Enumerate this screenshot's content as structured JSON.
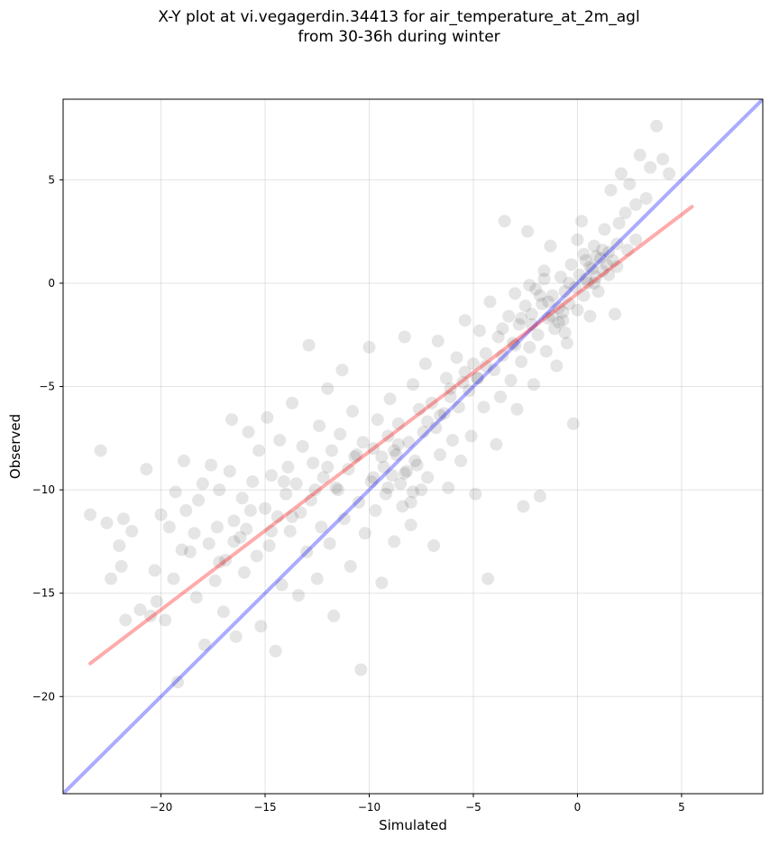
{
  "chart_data": {
    "type": "scatter",
    "title": "X-Y plot at vi.vegagerdin.34413 for air_temperature_at_2m_agl\nfrom 30-36h during winter",
    "xlabel": "Simulated",
    "ylabel": "Observed",
    "xlim": [
      -24.7,
      8.9
    ],
    "ylim": [
      -24.7,
      8.9
    ],
    "xticks": [
      -20,
      -15,
      -10,
      -5,
      0,
      5
    ],
    "yticks": [
      -20,
      -15,
      -10,
      -5,
      0,
      5
    ],
    "xtick_labels": [
      "−20",
      "−15",
      "−10",
      "−5",
      "0",
      "5"
    ],
    "ytick_labels": [
      "−20",
      "−15",
      "−10",
      "−5",
      "0",
      "5"
    ],
    "grid": true,
    "legend": "none",
    "point_color": "#000000",
    "identity_line": {
      "color": "#0000ff",
      "from": [
        -24.7,
        -24.7
      ],
      "to": [
        8.9,
        8.9
      ]
    },
    "regression_line": {
      "color": "#ff0000",
      "from": [
        -23.4,
        -18.4
      ],
      "to": [
        5.5,
        3.7
      ]
    },
    "points": [
      [
        -23.4,
        -11.2
      ],
      [
        -22.9,
        -8.1
      ],
      [
        -22.6,
        -11.6
      ],
      [
        -22.4,
        -14.3
      ],
      [
        -22.0,
        -12.7
      ],
      [
        -21.9,
        -13.7
      ],
      [
        -21.8,
        -11.4
      ],
      [
        -21.7,
        -16.3
      ],
      [
        -21.4,
        -12.0
      ],
      [
        -21.0,
        -15.8
      ],
      [
        -20.7,
        -9.0
      ],
      [
        -20.5,
        -16.1
      ],
      [
        -20.3,
        -13.9
      ],
      [
        -20.2,
        -15.4
      ],
      [
        -20.0,
        -11.2
      ],
      [
        -19.8,
        -16.3
      ],
      [
        -19.6,
        -11.8
      ],
      [
        -19.4,
        -14.3
      ],
      [
        -19.3,
        -10.1
      ],
      [
        -19.2,
        -19.3
      ],
      [
        -19.0,
        -12.9
      ],
      [
        -18.9,
        -8.6
      ],
      [
        -18.8,
        -11.0
      ],
      [
        -18.6,
        -13.0
      ],
      [
        -18.4,
        -12.1
      ],
      [
        -18.3,
        -15.2
      ],
      [
        -18.2,
        -10.5
      ],
      [
        -18.0,
        -9.7
      ],
      [
        -17.9,
        -17.5
      ],
      [
        -17.7,
        -12.6
      ],
      [
        -17.6,
        -8.8
      ],
      [
        -17.4,
        -14.4
      ],
      [
        -17.3,
        -11.8
      ],
      [
        -17.2,
        -10.0
      ],
      [
        -17.0,
        -15.9
      ],
      [
        -16.9,
        -13.4
      ],
      [
        -16.7,
        -9.1
      ],
      [
        -16.6,
        -6.6
      ],
      [
        -16.5,
        -11.5
      ],
      [
        -16.4,
        -17.1
      ],
      [
        -16.2,
        -12.3
      ],
      [
        -16.1,
        -10.4
      ],
      [
        -16.0,
        -14.0
      ],
      [
        -15.8,
        -7.2
      ],
      [
        -15.7,
        -11.0
      ],
      [
        -15.6,
        -9.6
      ],
      [
        -15.4,
        -13.2
      ],
      [
        -15.3,
        -8.1
      ],
      [
        -15.2,
        -16.6
      ],
      [
        -15.0,
        -10.9
      ],
      [
        -14.9,
        -6.5
      ],
      [
        -14.8,
        -12.7
      ],
      [
        -14.7,
        -9.3
      ],
      [
        -14.5,
        -17.8
      ],
      [
        -14.4,
        -11.3
      ],
      [
        -14.3,
        -7.6
      ],
      [
        -14.2,
        -14.6
      ],
      [
        -14.0,
        -10.2
      ],
      [
        -13.9,
        -8.9
      ],
      [
        -13.8,
        -12.0
      ],
      [
        -13.7,
        -5.8
      ],
      [
        -13.5,
        -9.7
      ],
      [
        -13.4,
        -15.1
      ],
      [
        -13.3,
        -11.1
      ],
      [
        -13.2,
        -7.9
      ],
      [
        -13.0,
        -13.0
      ],
      [
        -12.9,
        -3.0
      ],
      [
        -12.8,
        -10.5
      ],
      [
        -12.7,
        -8.7
      ],
      [
        -12.5,
        -14.3
      ],
      [
        -12.4,
        -6.9
      ],
      [
        -12.3,
        -11.8
      ],
      [
        -12.2,
        -9.4
      ],
      [
        -12.0,
        -5.1
      ],
      [
        -11.9,
        -12.6
      ],
      [
        -11.8,
        -8.1
      ],
      [
        -11.7,
        -16.1
      ],
      [
        -11.5,
        -10.0
      ],
      [
        -11.4,
        -7.3
      ],
      [
        -11.3,
        -4.2
      ],
      [
        -11.2,
        -11.4
      ],
      [
        -11.0,
        -9.0
      ],
      [
        -10.9,
        -13.7
      ],
      [
        -10.8,
        -6.2
      ],
      [
        -10.7,
        -8.4
      ],
      [
        -10.5,
        -10.6
      ],
      [
        -10.4,
        -18.7
      ],
      [
        -10.3,
        -7.7
      ],
      [
        -10.2,
        -12.1
      ],
      [
        -10.0,
        -3.1
      ],
      [
        -9.9,
        -9.6
      ],
      [
        -9.8,
        -8.0
      ],
      [
        -9.7,
        -11.0
      ],
      [
        -9.6,
        -6.6
      ],
      [
        -9.4,
        -14.5
      ],
      [
        -9.3,
        -8.9
      ],
      [
        -9.2,
        -10.2
      ],
      [
        -9.1,
        -7.4
      ],
      [
        -9.0,
        -5.6
      ],
      [
        -8.9,
        -9.3
      ],
      [
        -8.8,
        -12.5
      ],
      [
        -8.7,
        -8.3
      ],
      [
        -8.6,
        -6.8
      ],
      [
        -8.4,
        -10.8
      ],
      [
        -8.3,
        -2.6
      ],
      [
        -8.2,
        -9.1
      ],
      [
        -8.1,
        -7.7
      ],
      [
        -8.0,
        -11.7
      ],
      [
        -7.9,
        -4.9
      ],
      [
        -7.8,
        -8.6
      ],
      [
        -7.6,
        -6.1
      ],
      [
        -7.5,
        -10.0
      ],
      [
        -7.4,
        -7.2
      ],
      [
        -7.3,
        -3.9
      ],
      [
        -7.2,
        -9.4
      ],
      [
        -7.0,
        -5.8
      ],
      [
        -6.9,
        -12.7
      ],
      [
        -6.8,
        -7.0
      ],
      [
        -6.7,
        -2.8
      ],
      [
        -6.6,
        -8.3
      ],
      [
        -6.4,
        -6.3
      ],
      [
        -6.3,
        -4.6
      ],
      [
        -6.2,
        -9.9
      ],
      [
        -6.1,
        -5.5
      ],
      [
        -6.0,
        -7.6
      ],
      [
        -5.8,
        -3.6
      ],
      [
        -5.7,
        -6.0
      ],
      [
        -5.6,
        -8.6
      ],
      [
        -5.5,
        -4.8
      ],
      [
        -5.4,
        -1.8
      ],
      [
        -5.2,
        -5.2
      ],
      [
        -5.1,
        -7.4
      ],
      [
        -5.0,
        -3.9
      ],
      [
        -4.9,
        -10.2
      ],
      [
        -4.8,
        -4.6
      ],
      [
        -4.7,
        -2.3
      ],
      [
        -4.5,
        -6.0
      ],
      [
        -4.4,
        -3.4
      ],
      [
        -4.3,
        -14.3
      ],
      [
        -4.2,
        -0.9
      ],
      [
        -4.0,
        -4.2
      ],
      [
        -3.9,
        -7.8
      ],
      [
        -3.8,
        -2.6
      ],
      [
        -3.7,
        -5.5
      ],
      [
        -3.6,
        -3.5
      ],
      [
        -3.5,
        3.0
      ],
      [
        -3.3,
        -1.6
      ],
      [
        -3.2,
        -4.7
      ],
      [
        -3.1,
        -2.9
      ],
      [
        -3.0,
        -0.5
      ],
      [
        -2.9,
        -6.1
      ],
      [
        -2.8,
        -2.0
      ],
      [
        -2.7,
        -3.8
      ],
      [
        -2.6,
        -10.8
      ],
      [
        -2.5,
        -1.1
      ],
      [
        -2.4,
        2.5
      ],
      [
        -2.3,
        -3.1
      ],
      [
        -2.2,
        -1.5
      ],
      [
        -2.1,
        -4.9
      ],
      [
        -2.0,
        -0.3
      ],
      [
        -1.9,
        -2.5
      ],
      [
        -1.8,
        -10.3
      ],
      [
        -1.7,
        -1.0
      ],
      [
        -1.6,
        0.6
      ],
      [
        -1.5,
        -3.3
      ],
      [
        -1.4,
        -1.7
      ],
      [
        -1.3,
        1.8
      ],
      [
        -1.2,
        -0.6
      ],
      [
        -1.1,
        -2.2
      ],
      [
        -1.0,
        -4.0
      ],
      [
        -0.9,
        -1.2
      ],
      [
        -0.8,
        0.3
      ],
      [
        -0.7,
        -1.8
      ],
      [
        -0.6,
        -0.4
      ],
      [
        -0.5,
        -2.9
      ],
      [
        -0.4,
        -1.0
      ],
      [
        -0.3,
        0.9
      ],
      [
        -0.2,
        -6.8
      ],
      [
        -0.1,
        -0.2
      ],
      [
        0.0,
        -1.3
      ],
      [
        0.1,
        0.4
      ],
      [
        0.2,
        3.0
      ],
      [
        0.3,
        -0.6
      ],
      [
        0.4,
        1.1
      ],
      [
        0.5,
        0.0
      ],
      [
        0.6,
        -1.6
      ],
      [
        0.7,
        0.7
      ],
      [
        0.8,
        1.8
      ],
      [
        0.9,
        0.3
      ],
      [
        1.0,
        -0.4
      ],
      [
        1.1,
        1.2
      ],
      [
        1.2,
        0.6
      ],
      [
        1.3,
        2.6
      ],
      [
        1.4,
        0.9
      ],
      [
        1.5,
        1.5
      ],
      [
        1.6,
        4.5
      ],
      [
        1.7,
        1.1
      ],
      [
        1.8,
        -1.5
      ],
      [
        1.9,
        1.9
      ],
      [
        2.0,
        2.9
      ],
      [
        2.1,
        5.3
      ],
      [
        2.3,
        3.4
      ],
      [
        2.5,
        4.8
      ],
      [
        2.8,
        3.8
      ],
      [
        3.0,
        6.2
      ],
      [
        3.3,
        4.1
      ],
      [
        3.5,
        5.6
      ],
      [
        3.8,
        7.6
      ],
      [
        4.1,
        6.0
      ],
      [
        4.4,
        5.3
      ],
      [
        -8.8,
        -8.1
      ],
      [
        -8.5,
        -9.7
      ],
      [
        -9.4,
        -8.4
      ],
      [
        -8.0,
        -10.6
      ],
      [
        -9.1,
        -9.9
      ],
      [
        -7.7,
        -8.8
      ],
      [
        -8.6,
        -7.8
      ],
      [
        -9.8,
        -9.4
      ],
      [
        -8.3,
        -9.2
      ],
      [
        -7.9,
        -10.1
      ],
      [
        -1.2,
        -1.6
      ],
      [
        -0.9,
        -1.9
      ],
      [
        -0.6,
        -2.4
      ],
      [
        -1.4,
        -0.9
      ],
      [
        -0.7,
        -1.4
      ],
      [
        0.6,
        0.8
      ],
      [
        0.9,
        1.3
      ],
      [
        1.2,
        1.6
      ],
      [
        0.4,
        0.2
      ],
      [
        0.8,
        0.0
      ],
      [
        -2.7,
        -1.7
      ],
      [
        -3.6,
        -2.2
      ],
      [
        -4.4,
        -4.0
      ],
      [
        -5.4,
        -4.3
      ],
      [
        -6.1,
        -5.1
      ],
      [
        -6.6,
        -6.4
      ],
      [
        -7.2,
        -6.7
      ],
      [
        -2.2,
        -2.0
      ],
      [
        -3.0,
        -3.0
      ],
      [
        -4.8,
        -4.6
      ],
      [
        -13.7,
        -11.3
      ],
      [
        -14.7,
        -12.0
      ],
      [
        -12.6,
        -10.0
      ],
      [
        -11.6,
        -9.9
      ],
      [
        -15.9,
        -11.9
      ],
      [
        -17.2,
        -13.5
      ],
      [
        -16.5,
        -12.5
      ],
      [
        -12.0,
        -8.9
      ],
      [
        -14.1,
        -9.6
      ],
      [
        -10.6,
        -8.3
      ],
      [
        -1.8,
        -0.6
      ],
      [
        -2.3,
        -0.1
      ],
      [
        -1.6,
        0.2
      ],
      [
        0.0,
        2.1
      ],
      [
        0.3,
        1.4
      ],
      [
        -0.4,
        0.0
      ],
      [
        1.5,
        0.4
      ],
      [
        1.9,
        0.8
      ],
      [
        2.4,
        1.6
      ],
      [
        2.8,
        2.1
      ]
    ]
  }
}
